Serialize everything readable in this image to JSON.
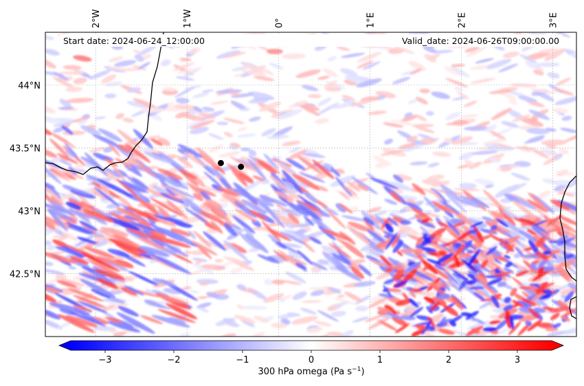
{
  "map": {
    "start_date_text": "Start date: 2024-06-24_12:00:00",
    "valid_date_text": "Valid_date: 2024-06-26T09:00:00.00",
    "lon_ticks": [
      {
        "value": -2,
        "label": "2°W"
      },
      {
        "value": -1,
        "label": "1°W"
      },
      {
        "value": 0,
        "label": "0°"
      },
      {
        "value": 1,
        "label": "1°E"
      },
      {
        "value": 2,
        "label": "2°E"
      },
      {
        "value": 3,
        "label": "3°E"
      }
    ],
    "lat_ticks": [
      {
        "value": 44.0,
        "label": "44°N"
      },
      {
        "value": 43.5,
        "label": "43.5°N"
      },
      {
        "value": 43.0,
        "label": "43°N"
      },
      {
        "value": 42.5,
        "label": "42.5°N"
      }
    ],
    "lon_range": [
      -2.55,
      3.26
    ],
    "lat_range": [
      42.0,
      44.42
    ],
    "markers": [
      {
        "lon": -0.63,
        "lat": 43.38
      },
      {
        "lon": -0.41,
        "lat": 43.35
      }
    ],
    "field_variable": "300 hPa omega",
    "field_units": "Pa s^-1"
  },
  "colorbar": {
    "label_text": "300 hPa omega (Pa s",
    "label_exponent": "−1",
    "label_close": ")",
    "vmin": -3.5,
    "vmax": 3.5,
    "ticks": [
      {
        "value": -3,
        "label": "−3"
      },
      {
        "value": -2,
        "label": "−2"
      },
      {
        "value": -1,
        "label": "−1"
      },
      {
        "value": 0,
        "label": "0"
      },
      {
        "value": 1,
        "label": "1"
      },
      {
        "value": 2,
        "label": "2"
      },
      {
        "value": 3,
        "label": "3"
      }
    ],
    "colors": {
      "low": "#0000ff",
      "mid": "#ffffff",
      "high": "#ff0000"
    },
    "extend": "both"
  },
  "colors": {
    "coastline": "#000000",
    "gridline": "#b0b0b0",
    "marker": "#000000"
  }
}
